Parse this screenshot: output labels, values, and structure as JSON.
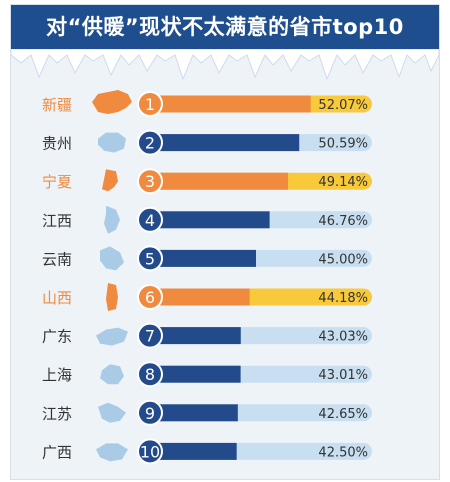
{
  "header": {
    "title": "对“供暖”现状不太满意的省市top10"
  },
  "colors": {
    "banner": "#1f4e8f",
    "highlight_bar": "#f08a3e",
    "highlight_rest": "#f8c93a",
    "normal_bar": "#234a8a",
    "normal_rest": "#c7dff0",
    "highlight_label": "#f08a3e",
    "normal_label": "#333333",
    "map_normal": "#a9cbe6",
    "map_highlight": "#f08a3e"
  },
  "chart_data": {
    "type": "bar",
    "orientation": "horizontal",
    "title": "对“供暖”现状不太满意的省市top10",
    "categories": [
      "新疆",
      "贵州",
      "宁夏",
      "江西",
      "云南",
      "山西",
      "广东",
      "上海",
      "江苏",
      "广西"
    ],
    "ranks": [
      "1",
      "2",
      "3",
      "4",
      "5",
      "6",
      "7",
      "8",
      "9",
      "10"
    ],
    "values": [
      52.07,
      50.59,
      49.14,
      46.76,
      45.0,
      44.18,
      43.03,
      43.01,
      42.65,
      42.5
    ],
    "value_labels": [
      "52.07%",
      "50.59%",
      "49.14%",
      "46.76%",
      "45.00%",
      "44.18%",
      "43.03%",
      "43.01%",
      "42.65%",
      "42.50%"
    ],
    "highlighted": [
      "新疆",
      "宁夏",
      "山西"
    ],
    "unit": "%"
  }
}
